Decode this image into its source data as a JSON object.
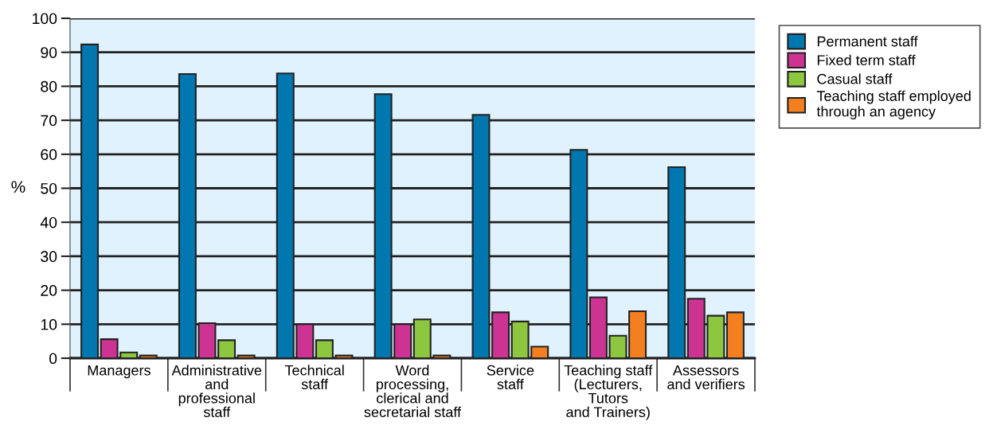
{
  "chart_data": {
    "type": "bar",
    "ylabel": "%",
    "categories": [
      "Managers",
      "Administrative\nand\nprofessional\nstaff",
      "Technical\nstaff",
      "Word\nprocessing,\nclerical and\nsecretarial staff",
      "Service\nstaff",
      "Teaching staff\n(Lecturers,\nTutors\nand Trainers)",
      "Assessors\nand verifiers"
    ],
    "series": [
      {
        "name": "Permanent staff",
        "color": "#0077ae",
        "values": [
          92.3,
          83.6,
          83.8,
          77.7,
          71.6,
          61.3,
          56.2
        ]
      },
      {
        "name": "Fixed term staff",
        "color": "#cc3393",
        "values": [
          5.6,
          10.3,
          10.0,
          10.0,
          13.5,
          17.9,
          17.5
        ]
      },
      {
        "name": "Casual staff",
        "color": "#8dc63f",
        "values": [
          1.7,
          5.3,
          5.3,
          11.4,
          10.8,
          6.6,
          12.5
        ]
      },
      {
        "name": "Teaching staff employed\nthrough an agency",
        "color": "#f47f20",
        "values": [
          0.8,
          0.8,
          0.8,
          0.8,
          3.4,
          13.8,
          13.5
        ]
      }
    ],
    "ylim": [
      0,
      100
    ],
    "yticks": [
      0,
      10,
      20,
      30,
      40,
      50,
      60,
      70,
      80,
      90,
      100
    ],
    "grid": "y",
    "legend": "top right"
  }
}
